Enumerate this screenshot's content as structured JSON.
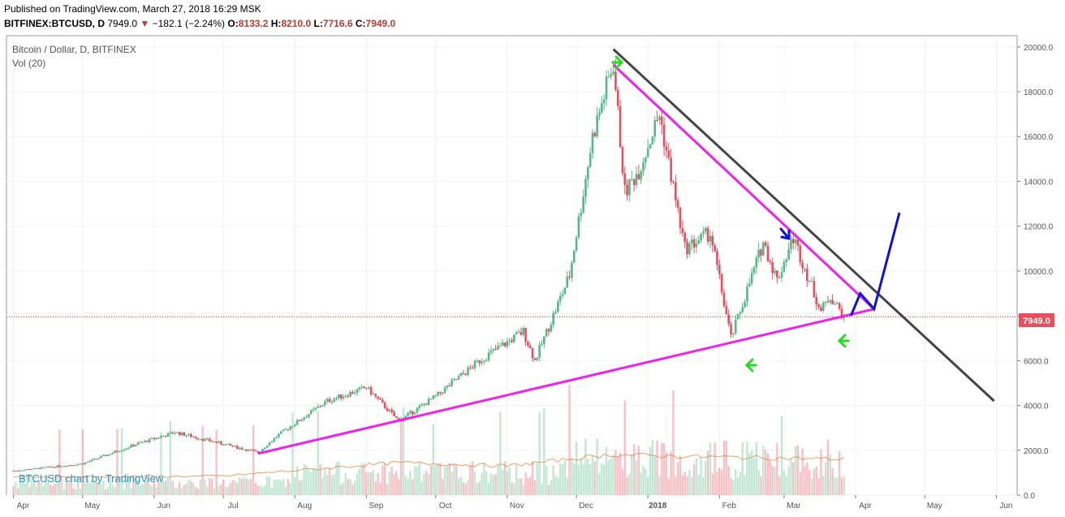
{
  "header": {
    "published": "Published on TradingView.com, March 27, 2018 16:29 MSK",
    "symbol": "BITFINEX:BTCUSD, D",
    "last": "7949.0",
    "change": "−182.1 (−2.24%)",
    "o_label": "O:",
    "o": "8133.2",
    "h_label": "H:",
    "h": "8210.0",
    "l_label": "L:",
    "l": "7716.6",
    "c_label": "C:",
    "c": "7949.0"
  },
  "legend": {
    "title": "Bitcoin / Dollar, D, BITFINEX",
    "vol": "Vol (20)"
  },
  "watermark": "BTCUSD chart by TradingView",
  "price_badge": "7949.0",
  "colors": {
    "up": "#53b987",
    "down": "#eb4d5c",
    "magenta": "#ee22ee",
    "black_line": "#444444",
    "blue": "#1010dd",
    "green_arrow": "#22dd22",
    "vol_ma": "#f0a060",
    "price_line": "#cc3333"
  },
  "chart_data": {
    "type": "candlestick",
    "ylim": [
      0,
      20500
    ],
    "y_ticks": [
      "20000.0",
      "18000.0",
      "16000.0",
      "14000.0",
      "12000.0",
      "10000.0",
      "8000.0",
      "6000.0",
      "4000.0",
      "2000.0",
      "0.0"
    ],
    "x_ticks": [
      "Apr",
      "May",
      "Jun",
      "Jul",
      "Aug",
      "Sep",
      "Oct",
      "Nov",
      "Dec",
      "2018",
      "Feb",
      "Mar",
      "Apr",
      "May",
      "Jun"
    ],
    "close_keypoints": [
      {
        "date": "2017-04-01",
        "close": 1080
      },
      {
        "date": "2017-05-01",
        "close": 1400
      },
      {
        "date": "2017-05-25",
        "close": 2300
      },
      {
        "date": "2017-06-10",
        "close": 2800
      },
      {
        "date": "2017-07-16",
        "close": 1900
      },
      {
        "date": "2017-07-25",
        "close": 2700
      },
      {
        "date": "2017-08-15",
        "close": 4200
      },
      {
        "date": "2017-09-01",
        "close": 4800
      },
      {
        "date": "2017-09-15",
        "close": 3300
      },
      {
        "date": "2017-10-01",
        "close": 4400
      },
      {
        "date": "2017-10-20",
        "close": 6000
      },
      {
        "date": "2017-11-08",
        "close": 7300
      },
      {
        "date": "2017-11-13",
        "close": 6000
      },
      {
        "date": "2017-11-28",
        "close": 9800
      },
      {
        "date": "2017-12-08",
        "close": 16000
      },
      {
        "date": "2017-12-17",
        "close": 19300
      },
      {
        "date": "2017-12-22",
        "close": 13500
      },
      {
        "date": "2017-12-28",
        "close": 14500
      },
      {
        "date": "2018-01-06",
        "close": 17000
      },
      {
        "date": "2018-01-17",
        "close": 11000
      },
      {
        "date": "2018-01-28",
        "close": 11700
      },
      {
        "date": "2018-02-06",
        "close": 7000
      },
      {
        "date": "2018-02-20",
        "close": 11300
      },
      {
        "date": "2018-02-26",
        "close": 9600
      },
      {
        "date": "2018-03-05",
        "close": 11500
      },
      {
        "date": "2018-03-17",
        "close": 8200
      },
      {
        "date": "2018-03-21",
        "close": 8900
      },
      {
        "date": "2018-03-27",
        "close": 7949
      }
    ],
    "volume_ma": [
      {
        "date": "2017-04-01",
        "value": 800
      },
      {
        "date": "2017-07-01",
        "value": 850
      },
      {
        "date": "2017-09-15",
        "value": 1450
      },
      {
        "date": "2017-11-01",
        "value": 1300
      },
      {
        "date": "2017-12-15",
        "value": 1800
      },
      {
        "date": "2018-02-01",
        "value": 1700
      },
      {
        "date": "2018-03-27",
        "value": 1600
      }
    ],
    "trendlines": [
      {
        "name": "support",
        "color": "magenta",
        "points": [
          [
            "2017-07-16",
            1850
          ],
          [
            "2018-04-09",
            8300
          ]
        ]
      },
      {
        "name": "resistance",
        "color": "magenta",
        "points": [
          [
            "2017-12-17",
            19200
          ],
          [
            "2018-04-09",
            8300
          ]
        ]
      },
      {
        "name": "black",
        "color": "black_line",
        "points": [
          [
            "2017-12-17",
            19900
          ],
          [
            "2018-05-31",
            4200
          ]
        ]
      },
      {
        "name": "projection",
        "color": "blue",
        "points": [
          [
            "2018-03-30",
            8000
          ],
          [
            "2018-04-03",
            9000
          ],
          [
            "2018-04-09",
            8300
          ],
          [
            "2018-04-20",
            12600
          ]
        ]
      }
    ]
  }
}
